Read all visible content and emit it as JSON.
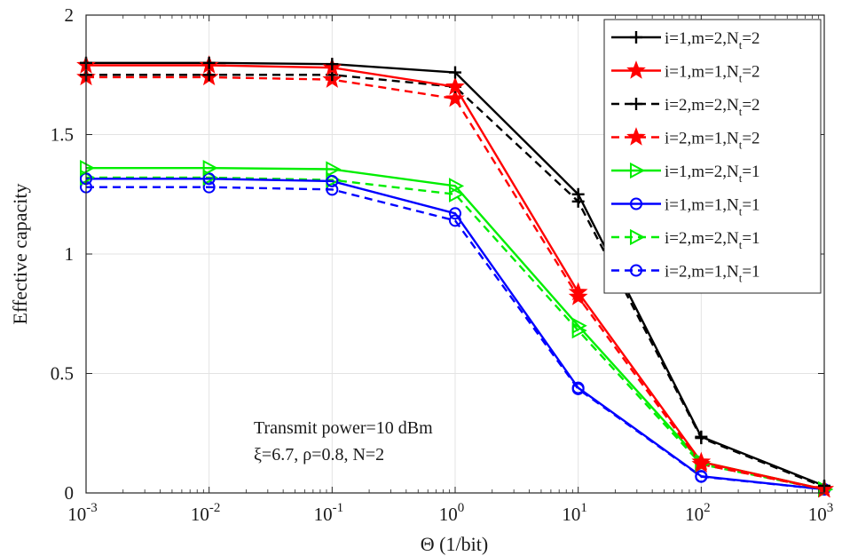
{
  "chart_data": {
    "type": "line",
    "xlabel": "Θ (1/bit)",
    "ylabel": "Effective capacity",
    "xscale": "log",
    "xlim": [
      0.001,
      1000
    ],
    "ylim": [
      0,
      2
    ],
    "grid": true,
    "legend_position": "top-right",
    "xticks": [
      {
        "base": "10",
        "exp": "-3"
      },
      {
        "base": "10",
        "exp": "-2"
      },
      {
        "base": "10",
        "exp": "-1"
      },
      {
        "base": "10",
        "exp": "0"
      },
      {
        "base": "10",
        "exp": "1"
      },
      {
        "base": "10",
        "exp": "2"
      },
      {
        "base": "10",
        "exp": "3"
      }
    ],
    "yticks": [
      "0",
      "0.5",
      "1",
      "1.5",
      "2"
    ],
    "x": [
      0.001,
      0.01,
      0.1,
      1,
      10,
      100,
      1000
    ],
    "annotation": {
      "line1": "Transmit power=10 dBm",
      "line2": "ξ=6.7, ρ=0.8, N=2"
    },
    "series": [
      {
        "name": "i=1,m=2,N_t=2",
        "label_main": "i=1,m=2,N",
        "label_sub": "t",
        "label_tail": "=2",
        "color": "#000000",
        "dash": "solid",
        "marker": "plus",
        "values": [
          1.8,
          1.8,
          1.795,
          1.76,
          1.25,
          0.235,
          0.03
        ]
      },
      {
        "name": "i=1,m=1,N_t=2",
        "label_main": "i=1,m=1,N",
        "label_sub": "t",
        "label_tail": "=2",
        "color": "#ff0000",
        "dash": "solid",
        "marker": "star",
        "values": [
          1.79,
          1.79,
          1.78,
          1.7,
          0.84,
          0.13,
          0.015
        ]
      },
      {
        "name": "i=2,m=2,N_t=2",
        "label_main": "i=2,m=2,N",
        "label_sub": "t",
        "label_tail": "=2",
        "color": "#000000",
        "dash": "dashed",
        "marker": "plus",
        "values": [
          1.75,
          1.75,
          1.75,
          1.7,
          1.22,
          0.23,
          0.025
        ]
      },
      {
        "name": "i=2,m=1,N_t=2",
        "label_main": "i=2,m=1,N",
        "label_sub": "t",
        "label_tail": "=2",
        "color": "#ff0000",
        "dash": "dashed",
        "marker": "star",
        "values": [
          1.74,
          1.74,
          1.73,
          1.65,
          0.82,
          0.12,
          0.015
        ]
      },
      {
        "name": "i=1,m=2,N_t=1",
        "label_main": "i=1,m=2,N",
        "label_sub": "t",
        "label_tail": "=1",
        "color": "#00ee00",
        "dash": "solid",
        "marker": "triangle-right",
        "values": [
          1.36,
          1.36,
          1.355,
          1.285,
          0.7,
          0.13,
          0.015
        ]
      },
      {
        "name": "i=1,m=1,N_t=1",
        "label_main": "i=1,m=1,N",
        "label_sub": "t",
        "label_tail": "=1",
        "color": "#0000ff",
        "dash": "solid",
        "marker": "circle",
        "values": [
          1.315,
          1.315,
          1.305,
          1.17,
          0.44,
          0.07,
          0.015
        ]
      },
      {
        "name": "i=2,m=2,N_t=1",
        "label_main": "i=2,m=2,N",
        "label_sub": "t",
        "label_tail": "=1",
        "color": "#00ee00",
        "dash": "dashed",
        "marker": "triangle-right",
        "values": [
          1.32,
          1.32,
          1.31,
          1.25,
          0.68,
          0.12,
          0.015
        ]
      },
      {
        "name": "i=2,m=1,N_t=1",
        "label_main": "i=2,m=1,N",
        "label_sub": "t",
        "label_tail": "=1",
        "color": "#0000ff",
        "dash": "dashed",
        "marker": "circle",
        "values": [
          1.28,
          1.28,
          1.27,
          1.14,
          0.435,
          0.068,
          0.015
        ]
      }
    ]
  }
}
